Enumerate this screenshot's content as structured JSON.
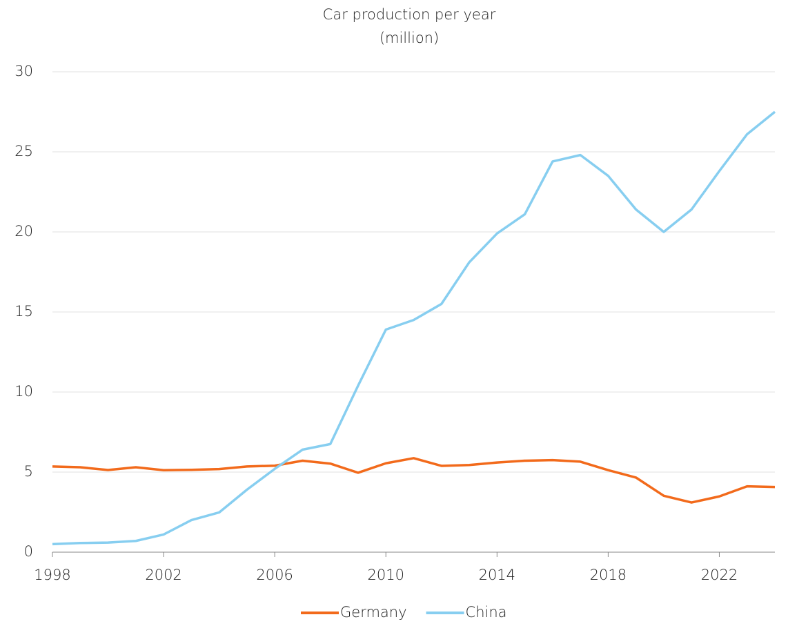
{
  "chart_data": {
    "type": "line",
    "title": "Car production per year",
    "subtitle": "(million)",
    "x": [
      1998,
      1999,
      2000,
      2001,
      2002,
      2003,
      2004,
      2005,
      2006,
      2007,
      2008,
      2009,
      2010,
      2011,
      2012,
      2013,
      2014,
      2015,
      2016,
      2017,
      2018,
      2019,
      2020,
      2021,
      2022,
      2023,
      2024
    ],
    "series": [
      {
        "name": "Germany",
        "color": "#f26a1b",
        "values": [
          5.35,
          5.3,
          5.13,
          5.3,
          5.12,
          5.14,
          5.19,
          5.35,
          5.4,
          5.71,
          5.53,
          4.96,
          5.55,
          5.87,
          5.39,
          5.44,
          5.6,
          5.71,
          5.75,
          5.65,
          5.12,
          4.66,
          3.52,
          3.1,
          3.48,
          4.11,
          4.07
        ]
      },
      {
        "name": "China",
        "color": "#87cef0",
        "values": [
          0.5,
          0.57,
          0.6,
          0.7,
          1.1,
          2.0,
          2.48,
          3.9,
          5.2,
          6.4,
          6.75,
          10.4,
          13.9,
          14.5,
          15.5,
          18.1,
          19.9,
          21.1,
          24.4,
          24.8,
          23.5,
          21.4,
          20.0,
          21.4,
          23.8,
          26.1,
          27.5
        ]
      }
    ],
    "xlim": [
      1998,
      2024
    ],
    "xticks": [
      1998,
      2002,
      2006,
      2010,
      2014,
      2018,
      2022
    ],
    "ylim": [
      0,
      30
    ],
    "yticks": [
      0,
      5,
      10,
      15,
      20,
      25,
      30
    ],
    "grid": true,
    "legend": "bottom"
  }
}
